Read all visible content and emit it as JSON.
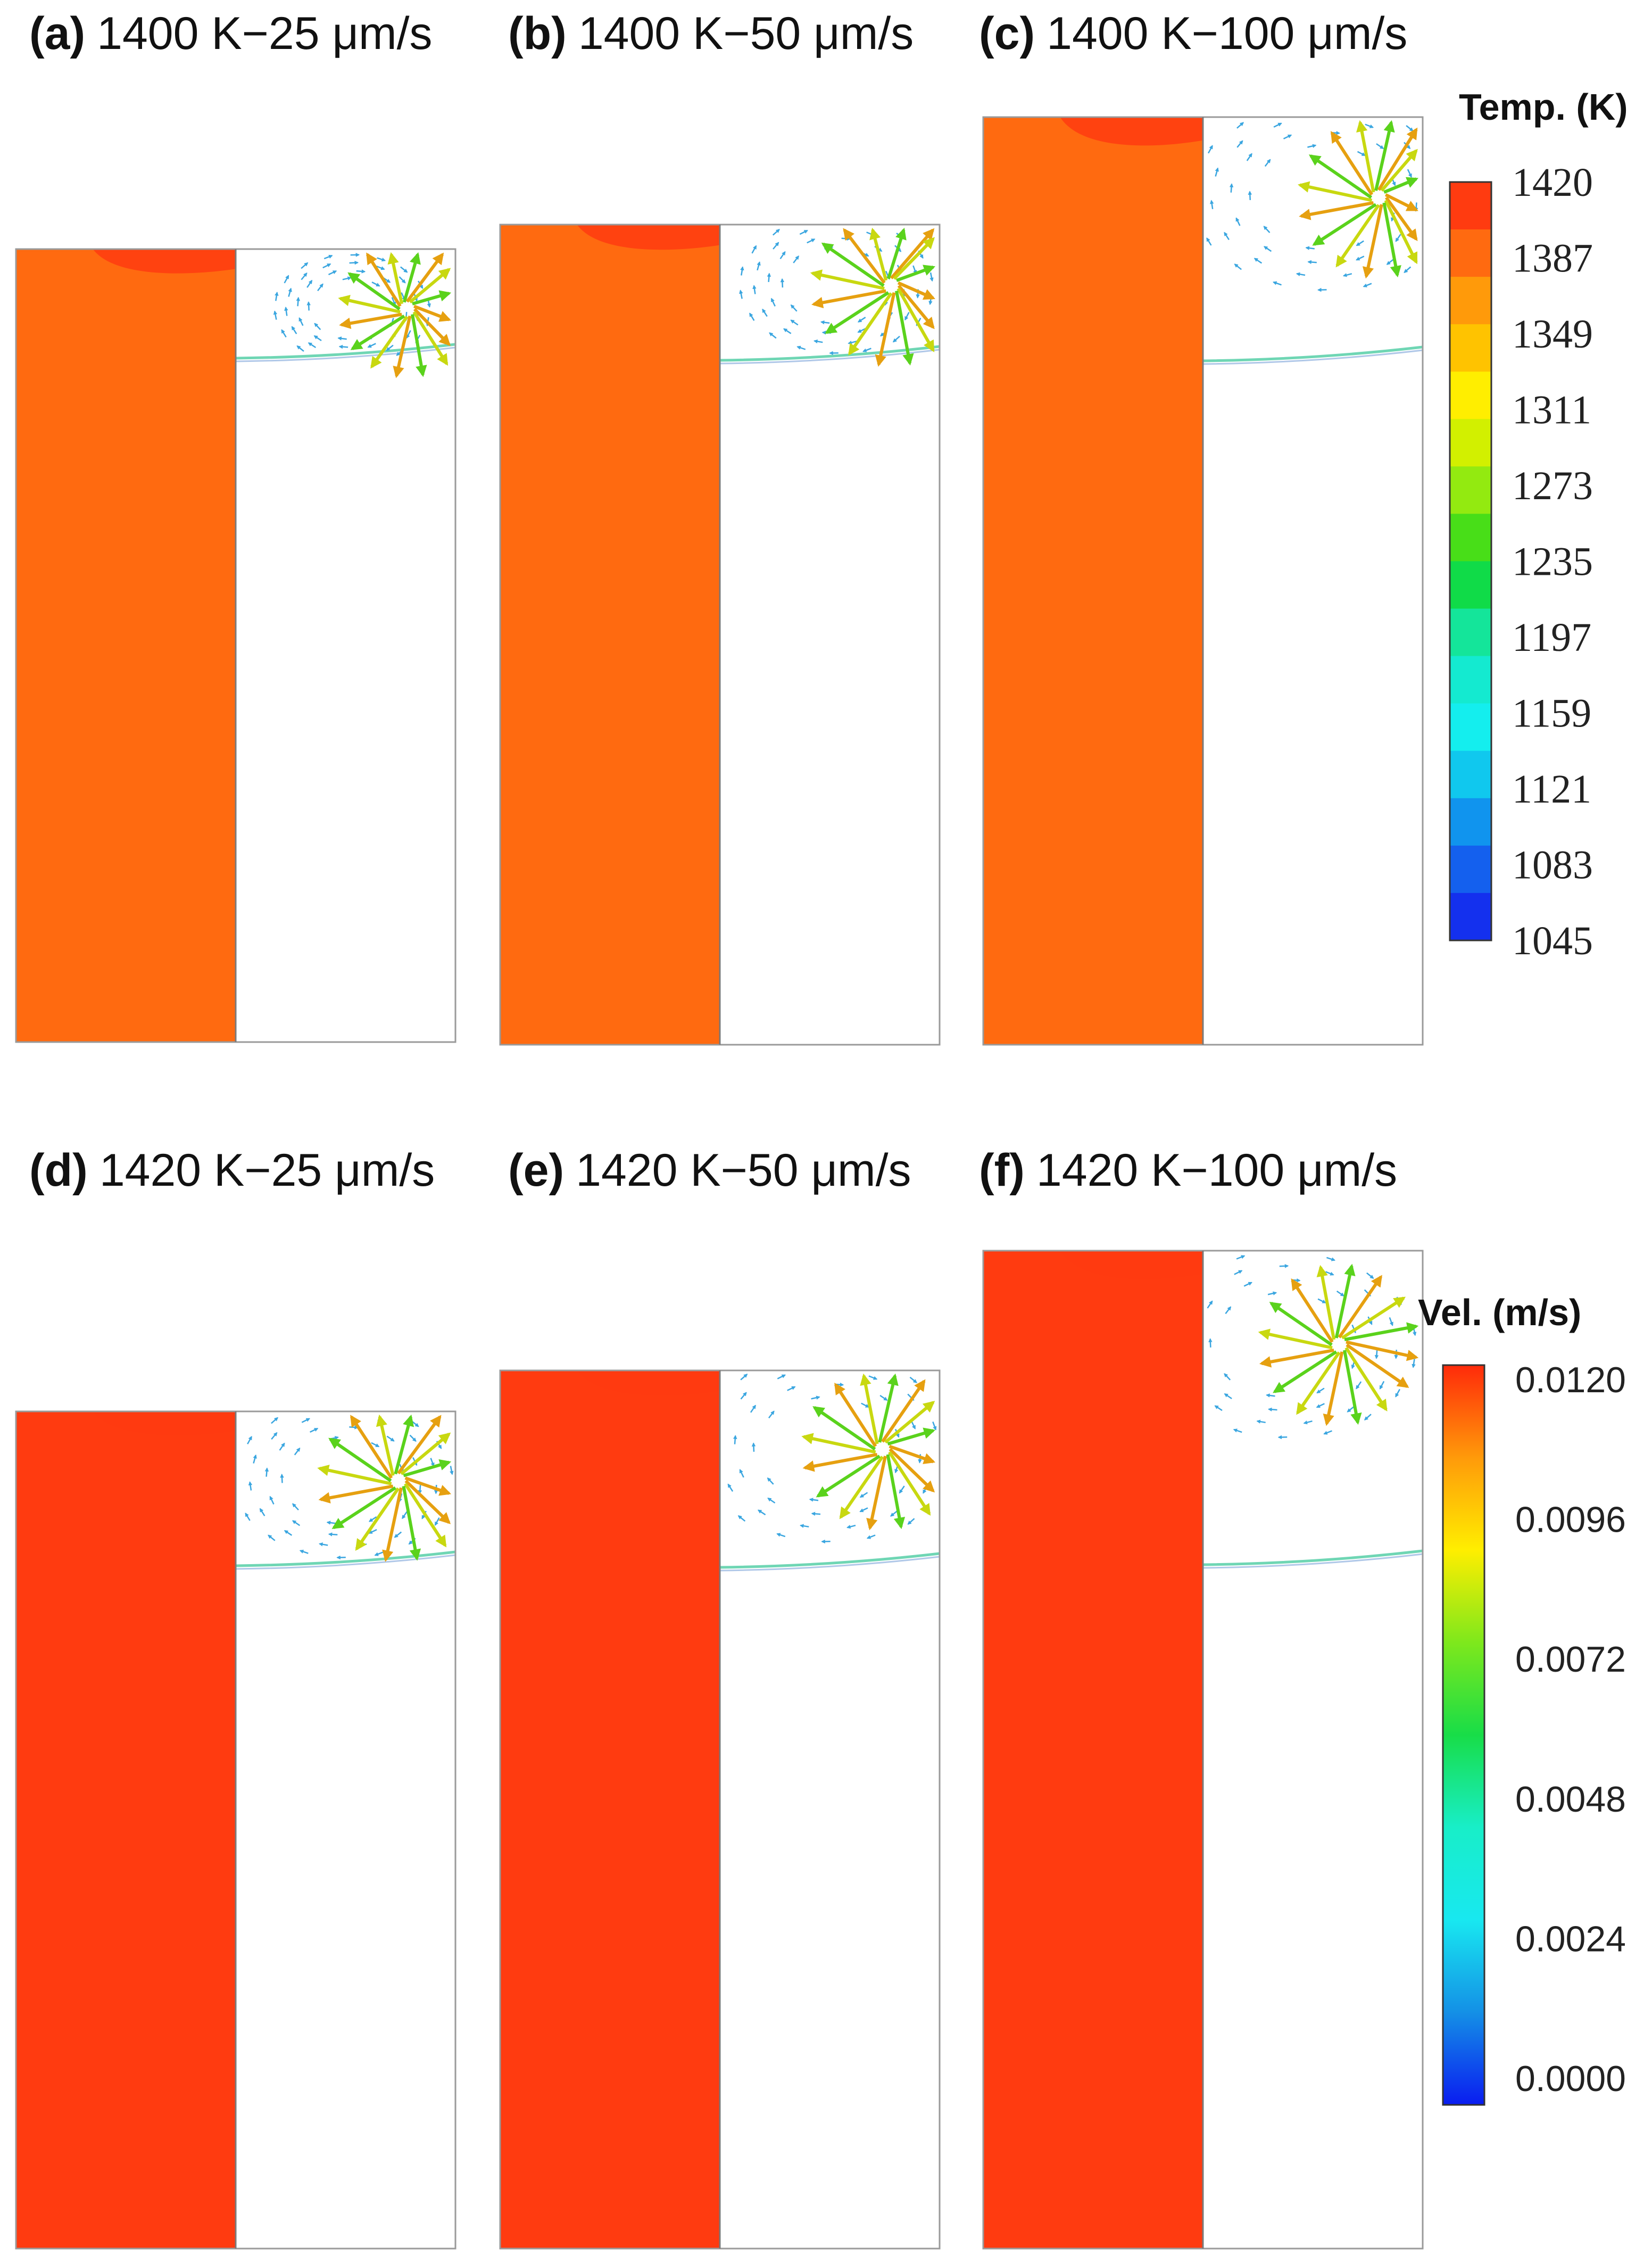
{
  "panels": [
    {
      "letter": "(a)",
      "text": "1400 K−25 μm/s",
      "temperature_K": 1400,
      "speed_um_s": 25
    },
    {
      "letter": "(b)",
      "text": "1400 K−50 μm/s",
      "temperature_K": 1400,
      "speed_um_s": 50
    },
    {
      "letter": "(c)",
      "text": "1400 K−100 μm/s",
      "temperature_K": 1400,
      "speed_um_s": 100
    },
    {
      "letter": "(d)",
      "text": "1420 K−25 μm/s",
      "temperature_K": 1420,
      "speed_um_s": 25
    },
    {
      "letter": "(e)",
      "text": "1420 K−50 μm/s",
      "temperature_K": 1420,
      "speed_um_s": 50
    },
    {
      "letter": "(f)",
      "text": "1420 K−100 μm/s",
      "temperature_K": 1420,
      "speed_um_s": 100
    }
  ],
  "temperature_colorbar": {
    "title": "Temp. (K)",
    "ticks": [
      "1420",
      "1387",
      "1349",
      "1311",
      "1273",
      "1235",
      "1197",
      "1159",
      "1121",
      "1083",
      "1045"
    ],
    "band_colors": [
      "#ff3b10",
      "#ff6a10",
      "#ff9a0a",
      "#ffc300",
      "#ffee00",
      "#d2f000",
      "#93ea10",
      "#48de18",
      "#10db48",
      "#14e59a",
      "#14ead0",
      "#14eeee",
      "#10c8ee",
      "#1094ee",
      "#1460ee",
      "#1430ee"
    ]
  },
  "velocity_colorbar": {
    "title": "Vel. (m/s)",
    "ticks": [
      "0.0120",
      "0.0096",
      "0.0072",
      "0.0048",
      "0.0024",
      "0.0000"
    ],
    "gradient_colors": [
      "#ff2a0a",
      "#ff9a0a",
      "#ffee00",
      "#7ee81c",
      "#18dd48",
      "#18eec8",
      "#18e8f0",
      "#1490e6",
      "#0a1cf0"
    ]
  }
}
